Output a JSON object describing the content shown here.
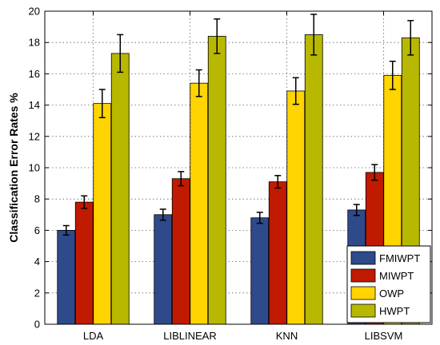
{
  "chart_data": {
    "type": "bar",
    "title": "",
    "xlabel": "",
    "ylabel": "Classification Error Rates %",
    "ylim": [
      0,
      20
    ],
    "yticks": [
      0,
      2,
      4,
      6,
      8,
      10,
      12,
      14,
      16,
      18,
      20
    ],
    "grid": true,
    "legend_position": "bottom-right",
    "categories": [
      "LDA",
      "LIBLINEAR",
      "KNN",
      "LIBSVM"
    ],
    "series": [
      {
        "name": "FMIWPT",
        "color": "#2e4a8a",
        "values": [
          6.0,
          7.0,
          6.8,
          7.3
        ],
        "errors": [
          0.3,
          0.35,
          0.35,
          0.35
        ]
      },
      {
        "name": "MIWPT",
        "color": "#c01a00",
        "values": [
          7.8,
          9.3,
          9.1,
          9.7
        ],
        "errors": [
          0.4,
          0.45,
          0.4,
          0.5
        ]
      },
      {
        "name": "OWP",
        "color": "#ffd400",
        "values": [
          14.1,
          15.4,
          14.9,
          15.9
        ],
        "errors": [
          0.9,
          0.85,
          0.85,
          0.9
        ]
      },
      {
        "name": "HWPT",
        "color": "#b8b800",
        "values": [
          17.3,
          18.4,
          18.5,
          18.3
        ],
        "errors": [
          1.2,
          1.1,
          1.3,
          1.1
        ]
      }
    ]
  }
}
